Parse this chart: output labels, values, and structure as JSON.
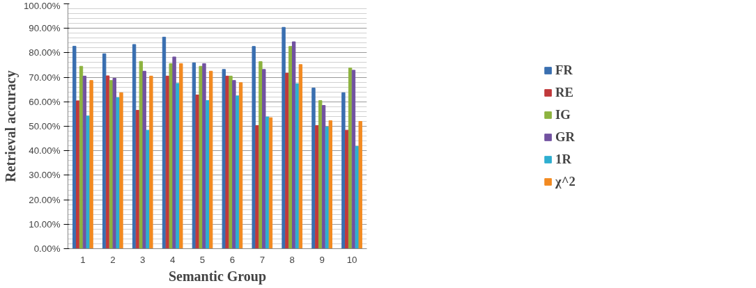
{
  "chart_data": {
    "type": "bar",
    "xlabel": "Semantic Group",
    "ylabel": "Retrieval accuracy",
    "categories": [
      "1",
      "2",
      "3",
      "4",
      "5",
      "6",
      "7",
      "8",
      "9",
      "10"
    ],
    "series": [
      {
        "name": "FR",
        "color": "#3a6fb0",
        "values": [
          82.7,
          79.6,
          83.4,
          86.4,
          75.9,
          73.2,
          82.6,
          90.4,
          65.6,
          63.7
        ]
      },
      {
        "name": "RE",
        "color": "#c0393b",
        "values": [
          60.4,
          70.6,
          56.5,
          70.5,
          62.8,
          70.5,
          50.3,
          71.7,
          50.3,
          48.4
        ]
      },
      {
        "name": "IG",
        "color": "#8db33f",
        "values": [
          74.5,
          68.7,
          76.5,
          75.6,
          74.5,
          70.5,
          76.4,
          82.6,
          60.5,
          73.8
        ]
      },
      {
        "name": "GR",
        "color": "#7252a0",
        "values": [
          70.5,
          69.6,
          72.5,
          78.3,
          75.6,
          68.7,
          73.2,
          84.5,
          58.5,
          72.9
        ]
      },
      {
        "name": "1R",
        "color": "#2eaed0",
        "values": [
          54.2,
          61.7,
          48.4,
          67.5,
          60.5,
          62.4,
          53.8,
          67.4,
          49.7,
          41.8
        ]
      },
      {
        "name": "χ^2",
        "color": "#f28a21",
        "values": [
          68.7,
          63.7,
          70.5,
          75.6,
          72.5,
          67.8,
          53.5,
          75.2,
          52.3,
          52.0
        ]
      }
    ],
    "ylim": [
      0,
      100
    ],
    "yticks": [
      {
        "value": 0,
        "label": "0.00%"
      },
      {
        "value": 10,
        "label": "10.00%"
      },
      {
        "value": 20,
        "label": "20.00%"
      },
      {
        "value": 30,
        "label": "30.00%"
      },
      {
        "value": 40,
        "label": "40.00%"
      },
      {
        "value": 50,
        "label": "50.00%"
      },
      {
        "value": 60,
        "label": "60.00%"
      },
      {
        "value": 70,
        "label": "70.00%"
      },
      {
        "value": 80,
        "label": "80.00%"
      },
      {
        "value": 90,
        "label": "90.00%"
      },
      {
        "value": 100,
        "label": "100.00%"
      }
    ],
    "grid": "y",
    "legend": "right"
  }
}
